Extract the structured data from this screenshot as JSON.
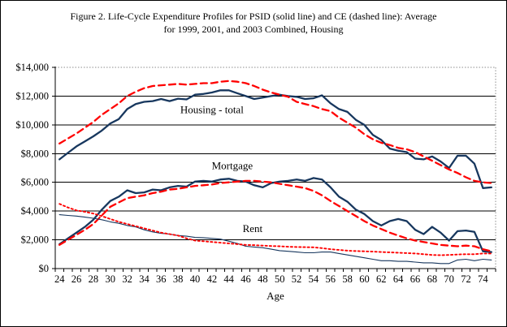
{
  "figure": {
    "title_line1": "Figure 2. Life-Cycle Expenditure Profiles for PSID (solid line) and CE (dashed line): Average",
    "title_line2": "for 1999, 2001, and 2003 Combined, Housing"
  },
  "colors": {
    "psid": "#17375E",
    "ce": "#FF0000",
    "axis": "#000000",
    "grid": "#000000",
    "frame_dotted": "#8C8C8C"
  },
  "chart_data": {
    "type": "line",
    "title": "Figure 2. Life-Cycle Expenditure Profiles for PSID (solid line) and CE (dashed line): Average for 1999, 2001, and 2003 Combined, Housing",
    "xlabel": "Age",
    "ylabel": "",
    "xlim": [
      24,
      75
    ],
    "ylim": [
      0,
      14000
    ],
    "ytick_step": 2000,
    "grid": true,
    "legend_position": "none",
    "x": [
      24,
      25,
      26,
      27,
      28,
      29,
      30,
      31,
      32,
      33,
      34,
      35,
      36,
      37,
      38,
      39,
      40,
      41,
      42,
      43,
      44,
      45,
      46,
      47,
      48,
      49,
      50,
      51,
      52,
      53,
      54,
      55,
      56,
      57,
      58,
      59,
      60,
      61,
      62,
      63,
      64,
      65,
      66,
      67,
      68,
      69,
      70,
      71,
      72,
      73,
      74,
      75
    ],
    "x_tick_labels": [
      24,
      26,
      28,
      30,
      32,
      34,
      36,
      38,
      40,
      42,
      44,
      46,
      48,
      50,
      52,
      54,
      56,
      58,
      60,
      62,
      64,
      66,
      68,
      70,
      72,
      74
    ],
    "ytick_labels": [
      "$0",
      "$2,000",
      "$4,000",
      "$6,000",
      "$8,000",
      "$10,000",
      "$12,000",
      "$14,000"
    ],
    "annotations": [
      {
        "text": "Housing - total",
        "age": 42.0,
        "value": 11050
      },
      {
        "text": "Mortgage",
        "age": 44.4,
        "value": 7150
      },
      {
        "text": "Rent",
        "age": 46.8,
        "value": 2760
      }
    ],
    "series": [
      {
        "key": "housing-total-psid",
        "name": "Housing total - PSID",
        "style": "solid",
        "color": "psid",
        "width": 2.3,
        "values": [
          7600,
          8050,
          8500,
          8850,
          9200,
          9600,
          10100,
          10400,
          11100,
          11450,
          11600,
          11650,
          11800,
          11650,
          11820,
          11770,
          12100,
          12150,
          12250,
          12400,
          12400,
          12200,
          12000,
          11800,
          11900,
          12000,
          12100,
          12000,
          11950,
          11800,
          11850,
          12050,
          11500,
          11100,
          10900,
          10350,
          10000,
          9300,
          8950,
          8350,
          8200,
          8100,
          7650,
          7600,
          7800,
          7450,
          7000,
          7850,
          7850,
          7300,
          5600,
          5650
        ]
      },
      {
        "key": "housing-total-ce",
        "name": "Housing total - CE",
        "style": "dashed",
        "color": "ce",
        "width": 2.3,
        "values": [
          8700,
          9050,
          9400,
          9800,
          10200,
          10700,
          11100,
          11500,
          12000,
          12300,
          12550,
          12700,
          12750,
          12800,
          12850,
          12800,
          12850,
          12900,
          12900,
          13000,
          13050,
          13000,
          12900,
          12700,
          12450,
          12250,
          12100,
          11950,
          11600,
          11450,
          11300,
          11100,
          10950,
          10500,
          10150,
          9800,
          9350,
          9000,
          8750,
          8600,
          8400,
          8300,
          8100,
          7800,
          7500,
          7200,
          6900,
          6650,
          6350,
          6100,
          6000,
          5950
        ]
      },
      {
        "key": "mortgage-psid",
        "name": "Mortgage - PSID",
        "style": "solid",
        "color": "psid",
        "width": 2.3,
        "values": [
          1700,
          2100,
          2500,
          2900,
          3400,
          4100,
          4700,
          5000,
          5450,
          5250,
          5300,
          5500,
          5450,
          5650,
          5750,
          5700,
          6050,
          6100,
          6050,
          6200,
          6250,
          6100,
          6050,
          5800,
          5650,
          5950,
          6050,
          6100,
          6200,
          6100,
          6300,
          6200,
          5650,
          5000,
          4650,
          4100,
          3800,
          3300,
          3000,
          3300,
          3450,
          3300,
          2700,
          2400,
          2900,
          2500,
          1950,
          2600,
          2650,
          2550,
          1200,
          1150
        ]
      },
      {
        "key": "mortgage-ce",
        "name": "Mortgage - CE",
        "style": "dashed",
        "color": "ce",
        "width": 2.3,
        "values": [
          1650,
          2000,
          2350,
          2700,
          3100,
          3700,
          4300,
          4600,
          4900,
          5000,
          5100,
          5250,
          5350,
          5500,
          5550,
          5650,
          5750,
          5800,
          5850,
          5950,
          6000,
          6050,
          6100,
          6100,
          6050,
          6000,
          5900,
          5800,
          5700,
          5600,
          5400,
          5100,
          4700,
          4350,
          4000,
          3650,
          3300,
          3000,
          2750,
          2500,
          2300,
          2100,
          1950,
          1850,
          1750,
          1650,
          1600,
          1550,
          1600,
          1550,
          1350,
          1200
        ]
      },
      {
        "key": "rent-psid",
        "name": "Rent - PSID",
        "style": "solid",
        "color": "psid",
        "width": 1.1,
        "values": [
          3750,
          3700,
          3650,
          3580,
          3500,
          3400,
          3250,
          3150,
          3000,
          2900,
          2700,
          2550,
          2450,
          2400,
          2300,
          2250,
          2170,
          2150,
          2100,
          2050,
          1900,
          1750,
          1550,
          1500,
          1450,
          1350,
          1250,
          1200,
          1150,
          1100,
          1100,
          1150,
          1150,
          1050,
          950,
          850,
          750,
          650,
          550,
          550,
          500,
          500,
          450,
          400,
          400,
          350,
          350,
          600,
          650,
          550,
          650,
          600
        ]
      },
      {
        "key": "rent-ce",
        "name": "Rent - CE",
        "style": "dotted",
        "color": "ce",
        "width": 1.9,
        "values": [
          4500,
          4250,
          4050,
          3950,
          3830,
          3650,
          3450,
          3250,
          3100,
          2950,
          2800,
          2650,
          2500,
          2400,
          2300,
          2100,
          1950,
          1900,
          1850,
          1800,
          1750,
          1700,
          1650,
          1630,
          1600,
          1570,
          1550,
          1520,
          1500,
          1490,
          1480,
          1420,
          1350,
          1300,
          1250,
          1220,
          1200,
          1180,
          1150,
          1130,
          1100,
          1080,
          1050,
          1000,
          950,
          930,
          950,
          980,
          1000,
          1000,
          1050,
          1050
        ]
      }
    ]
  }
}
